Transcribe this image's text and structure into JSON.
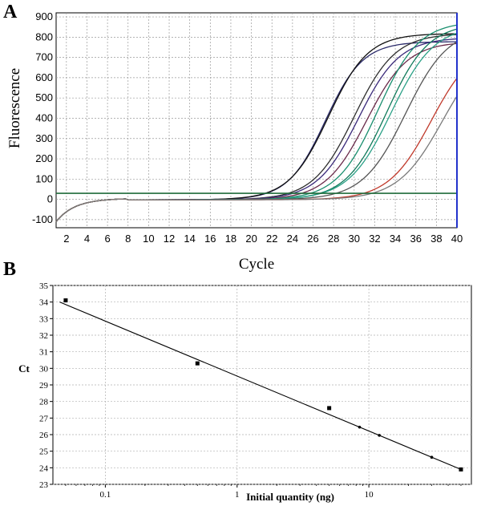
{
  "chart_data": [
    {
      "panel": "A",
      "type": "line",
      "xlabel": "Cycle",
      "ylabel": "Fluorescence",
      "xlim": [
        1,
        40
      ],
      "ylim": [
        -140,
        920
      ],
      "x_ticks": [
        "2",
        "4",
        "6",
        "8",
        "10",
        "12",
        "14",
        "16",
        "18",
        "20",
        "22",
        "24",
        "26",
        "28",
        "30",
        "32",
        "34",
        "36",
        "38",
        "40"
      ],
      "y_ticks": [
        "-100",
        "0",
        "100",
        "200",
        "300",
        "400",
        "500",
        "600",
        "700",
        "800",
        "900"
      ],
      "grid": true,
      "threshold": 30,
      "threshold_color": "#1f6b3a",
      "end_marker_color": "#2233cc",
      "series": [
        {
          "color": "#2a2a6a",
          "mid": 27.2,
          "k": 0.55,
          "max": 780
        },
        {
          "color": "#111111",
          "mid": 27.5,
          "k": 0.52,
          "max": 820
        },
        {
          "color": "#2e2e2e",
          "mid": 30.0,
          "k": 0.5,
          "max": 820
        },
        {
          "color": "#3a2a7a",
          "mid": 30.4,
          "k": 0.5,
          "max": 800
        },
        {
          "color": "#6a2a4a",
          "mid": 31.2,
          "k": 0.5,
          "max": 780
        },
        {
          "color": "#1a8f6f",
          "mid": 32.3,
          "k": 0.5,
          "max": 880
        },
        {
          "color": "#0f7a5a",
          "mid": 33.2,
          "k": 0.5,
          "max": 870
        },
        {
          "color": "#2aa086",
          "mid": 33.6,
          "k": 0.48,
          "max": 860
        },
        {
          "color": "#555555",
          "mid": 35.0,
          "k": 0.48,
          "max": 850
        },
        {
          "color": "#c0392b",
          "mid": 37.5,
          "k": 0.48,
          "max": 780
        },
        {
          "color": "#7a7a7a",
          "mid": 38.6,
          "k": 0.46,
          "max": 780
        }
      ]
    },
    {
      "panel": "B",
      "type": "scatter",
      "xlabel": "Initial quantity (ng)",
      "ylabel": "Ct",
      "xscale": "log",
      "xlim": [
        0.04,
        60
      ],
      "ylim": [
        23,
        35
      ],
      "x_ticks": [
        "0.1",
        "1",
        "10"
      ],
      "y_ticks": [
        "23",
        "24",
        "25",
        "26",
        "27",
        "28",
        "29",
        "30",
        "31",
        "32",
        "33",
        "34",
        "35"
      ],
      "grid": true,
      "points": [
        {
          "x": 0.05,
          "y": 34.1
        },
        {
          "x": 0.5,
          "y": 30.3
        },
        {
          "x": 5,
          "y": 27.6
        },
        {
          "x": 50,
          "y": 23.9
        }
      ],
      "fit_line": {
        "x_start": 0.045,
        "y_start": 34.0,
        "x_end": 50,
        "y_end": 23.9
      },
      "fit_markers": [
        8.5,
        12,
        30
      ]
    }
  ]
}
